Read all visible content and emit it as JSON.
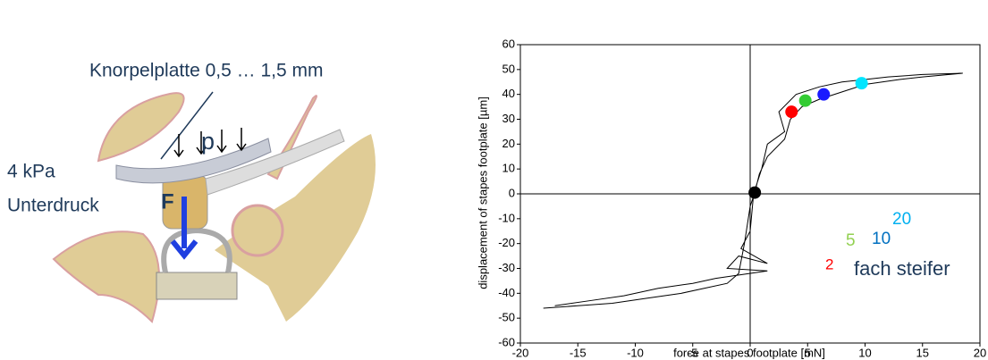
{
  "diagram": {
    "plate_label": "Knorpelplatte 0,5 … 1,5 mm",
    "pressure_symbol": "p",
    "pressure_value": "4 kPa",
    "pressure_label": "Unterdruck",
    "force_symbol": "F"
  },
  "chart_data": {
    "type": "scatter",
    "xlabel": "force at stapes footplate [mN]",
    "ylabel": "displacement of stapes footplate [µm]",
    "xlim": [
      -20,
      20
    ],
    "ylim": [
      -60,
      60
    ],
    "xticks": [
      -20,
      -15,
      -10,
      -5,
      0,
      5,
      10,
      15,
      20
    ],
    "yticks": [
      -60,
      -50,
      -40,
      -30,
      -20,
      -10,
      0,
      10,
      20,
      30,
      40,
      50,
      60
    ],
    "series": [
      {
        "style": "line",
        "color": "#000000",
        "x": [
          -18,
          -15,
          -12,
          -9,
          -6,
          -4,
          -2,
          -1,
          -0.5,
          0,
          0.4,
          0.8,
          1.5,
          3,
          3.5,
          4.5,
          6,
          8,
          10,
          13,
          15,
          18.5,
          15,
          12,
          10,
          8,
          6,
          4,
          2.5,
          3,
          1.5,
          1,
          0.3,
          0,
          -0.8,
          1.5,
          -1,
          -2,
          1.5,
          -3,
          -5,
          -8,
          -11,
          -14,
          -17
        ],
        "values": [
          -46,
          -45,
          -44,
          -42,
          -40,
          -38,
          -36,
          -32,
          -20,
          -5,
          0.5,
          8,
          15,
          22,
          30,
          35,
          38,
          41,
          44,
          46,
          47,
          48.5,
          48,
          47,
          46,
          45,
          43,
          40,
          33,
          25,
          20,
          10,
          0,
          -15,
          -22,
          -28,
          -25,
          -30,
          -31,
          -34,
          -36,
          -38,
          -41,
          -43,
          -45
        ]
      },
      {
        "style": "points",
        "colors": [
          "#ff0000",
          "#33cc33",
          "#1a1aff",
          "#00e5ff",
          "#000000"
        ],
        "x": [
          3.6,
          4.8,
          6.4,
          9.7,
          0.4
        ],
        "values": [
          33,
          37.5,
          40,
          44.5,
          0.5
        ]
      }
    ],
    "annotations": [
      {
        "text": "2",
        "color": "#ff0000"
      },
      {
        "text": "5",
        "color": "#92d050"
      },
      {
        "text": "10",
        "color": "#0070c0"
      },
      {
        "text": "20",
        "color": "#00b0f0"
      },
      {
        "text": "fach steifer",
        "color": "#1f3a5a"
      }
    ]
  }
}
